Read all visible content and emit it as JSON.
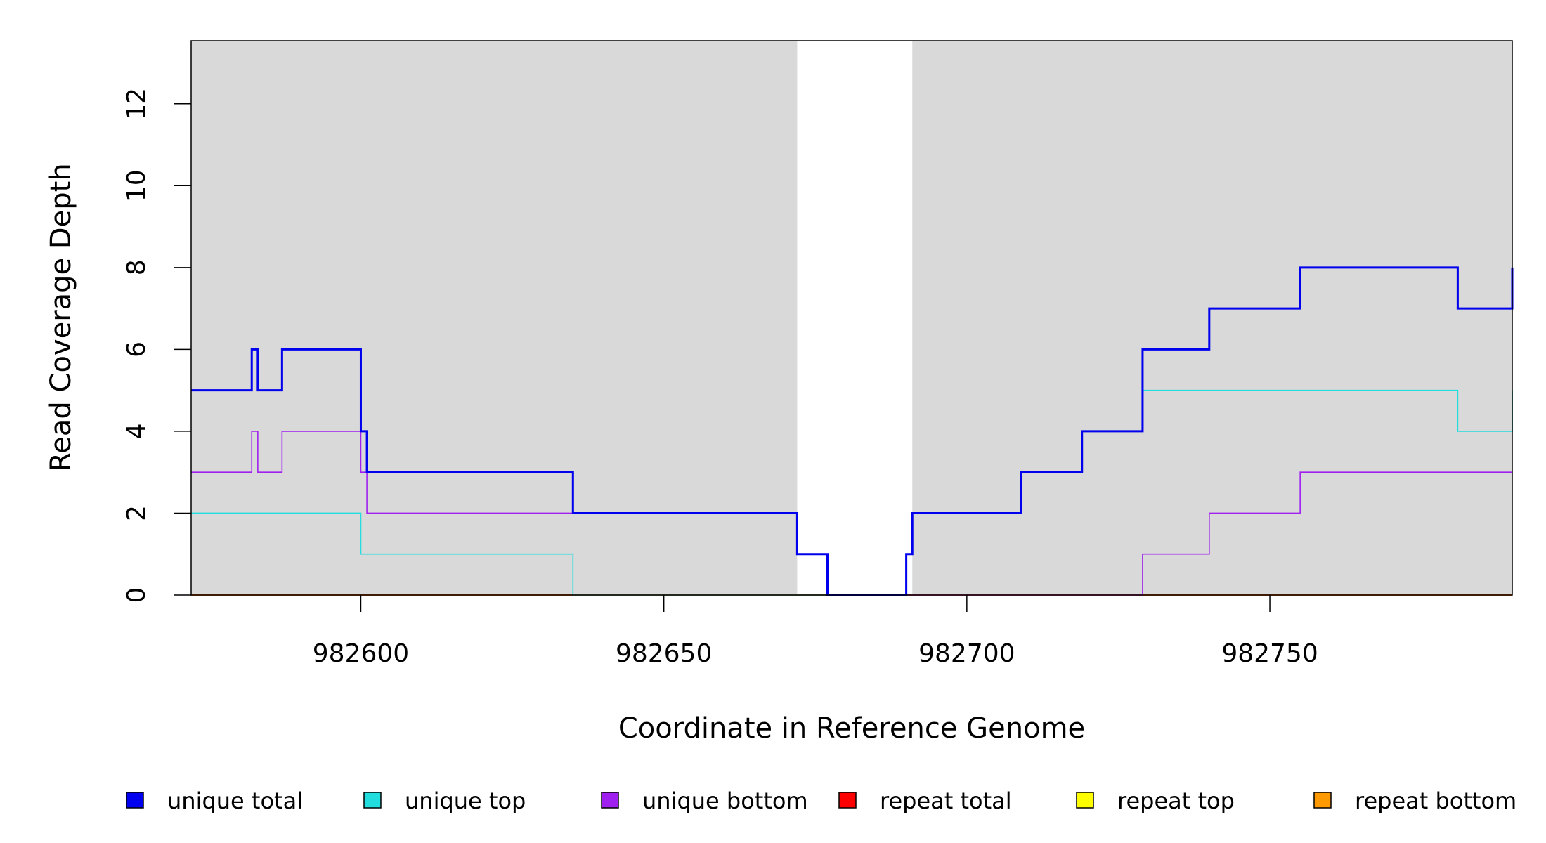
{
  "chart_data": {
    "type": "line",
    "style": "step",
    "title": "",
    "xlabel": "Coordinate in Reference Genome",
    "ylabel": "Read Coverage Depth",
    "xlim": [
      982572,
      982790
    ],
    "ylim": [
      0,
      13
    ],
    "xticks": [
      982600,
      982650,
      982700,
      982750
    ],
    "yticks": [
      0,
      2,
      4,
      6,
      8,
      10,
      12
    ],
    "xtick_labels": [
      "982600",
      "982650",
      "982700",
      "982750"
    ],
    "ytick_labels": [
      "0",
      "2",
      "4",
      "6",
      "8",
      "10",
      "12"
    ],
    "grid": false,
    "background": "#d9d9d9",
    "highlight_region": {
      "x": [
        982672,
        982691
      ],
      "color": "#ffffff"
    },
    "legend_position": "bottom",
    "series": [
      {
        "name": "unique total",
        "color": "#0000ee",
        "steps": [
          [
            982572,
            5
          ],
          [
            982582,
            6
          ],
          [
            982583,
            5
          ],
          [
            982587,
            6
          ],
          [
            982600,
            4
          ],
          [
            982601,
            3
          ],
          [
            982635,
            2
          ],
          [
            982672,
            1
          ],
          [
            982677,
            0
          ],
          [
            982690,
            1
          ],
          [
            982691,
            2
          ],
          [
            982709,
            3
          ],
          [
            982719,
            4
          ],
          [
            982729,
            6
          ],
          [
            982740,
            7
          ],
          [
            982755,
            8
          ],
          [
            982781,
            7
          ],
          [
            982790,
            8
          ]
        ]
      },
      {
        "name": "unique top",
        "color": "#22dddd",
        "steps": [
          [
            982572,
            2
          ],
          [
            982600,
            1
          ],
          [
            982635,
            0
          ],
          [
            982690,
            1
          ],
          [
            982691,
            2
          ],
          [
            982709,
            3
          ],
          [
            982719,
            4
          ],
          [
            982729,
            5
          ],
          [
            982781,
            4
          ],
          [
            982790,
            5
          ]
        ]
      },
      {
        "name": "unique bottom",
        "color": "#a020f0",
        "steps": [
          [
            982572,
            3
          ],
          [
            982582,
            4
          ],
          [
            982583,
            3
          ],
          [
            982587,
            4
          ],
          [
            982600,
            3
          ],
          [
            982601,
            2
          ],
          [
            982672,
            1
          ],
          [
            982677,
            0
          ],
          [
            982729,
            1
          ],
          [
            982740,
            2
          ],
          [
            982755,
            3
          ],
          [
            982790,
            3
          ]
        ]
      },
      {
        "name": "repeat total",
        "color": "#ff0000",
        "steps": [
          [
            982572,
            0
          ],
          [
            982790,
            0
          ]
        ]
      },
      {
        "name": "repeat top",
        "color": "#ffff00",
        "steps": [
          [
            982572,
            0
          ],
          [
            982790,
            0
          ]
        ]
      },
      {
        "name": "repeat bottom",
        "color": "#ff9900",
        "steps": [
          [
            982572,
            0
          ],
          [
            982790,
            0
          ]
        ]
      }
    ]
  }
}
